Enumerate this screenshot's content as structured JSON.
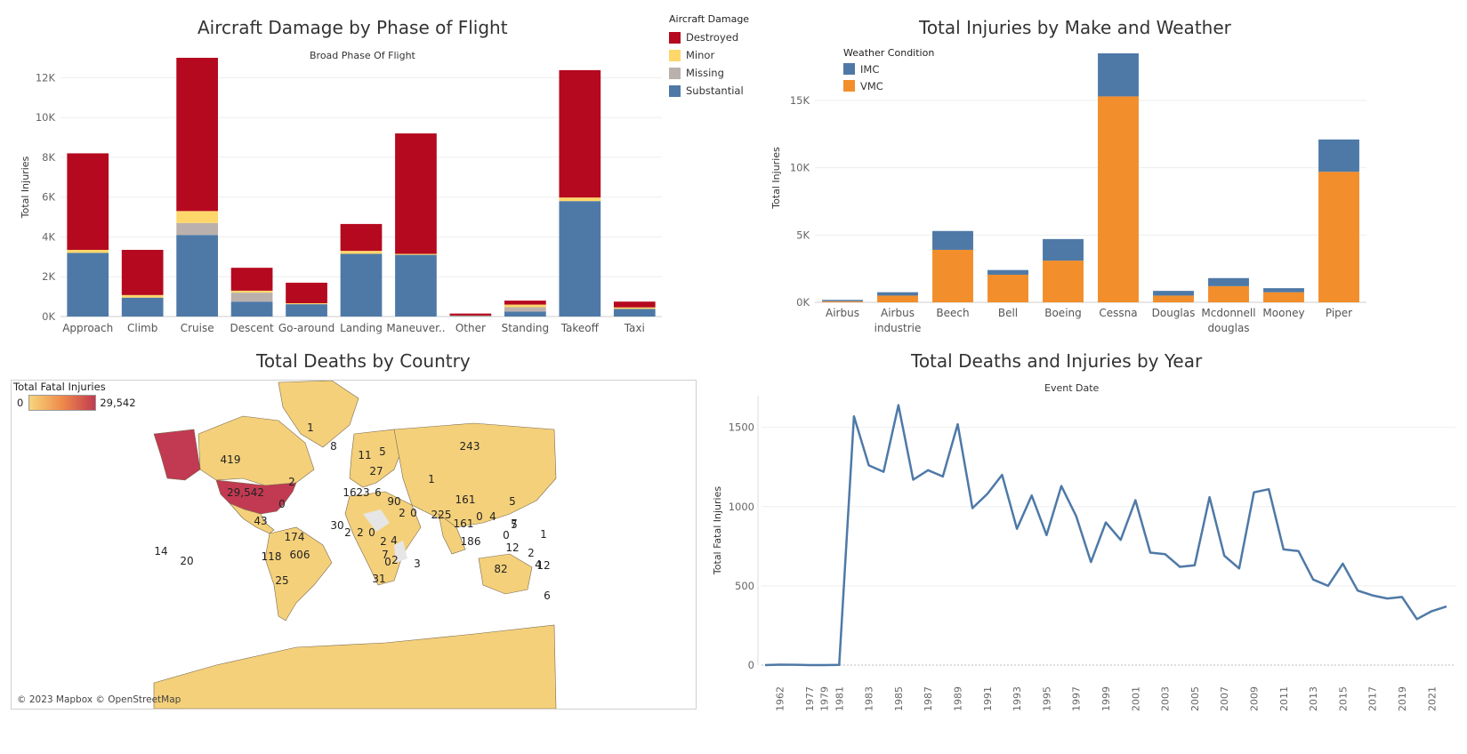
{
  "colors": {
    "destroyed": "#b5091f",
    "minor": "#fdd76a",
    "missing": "#bab0ac",
    "substantial": "#4e79a7",
    "imc": "#4e79a7",
    "vmc": "#f28e2b",
    "line": "#4e79a7",
    "land": "#f4d07a",
    "usa": "#c13a51",
    "nodata": "#e6e6e6"
  },
  "charts": [
    {
      "type": "bar",
      "title": "Aircraft Damage by Phase of Flight",
      "subtitle": "Broad Phase Of Flight",
      "ylabel": "Total Injuries",
      "ylim": [
        0,
        13000
      ],
      "yticks": [
        "0K",
        "2K",
        "4K",
        "6K",
        "8K",
        "10K",
        "12K"
      ],
      "categories": [
        "Approach",
        "Climb",
        "Cruise",
        "Descent",
        "Go-around",
        "Landing",
        "Maneuver..",
        "Other",
        "Standing",
        "Takeoff",
        "Taxi"
      ],
      "legend_title": "Aircraft Damage",
      "legend_position": "top-right",
      "series": [
        {
          "name": "Substantial",
          "values": [
            3200,
            950,
            4100,
            750,
            620,
            3150,
            3100,
            30,
            250,
            5800,
            380
          ]
        },
        {
          "name": "Missing",
          "values": [
            0,
            0,
            600,
            450,
            0,
            0,
            0,
            0,
            220,
            0,
            0
          ]
        },
        {
          "name": "Minor",
          "values": [
            150,
            130,
            600,
            100,
            50,
            150,
            50,
            20,
            130,
            180,
            80
          ]
        },
        {
          "name": "Destroyed",
          "values": [
            4850,
            2270,
            7700,
            1150,
            1030,
            1350,
            6050,
            100,
            200,
            6400,
            290
          ]
        }
      ]
    },
    {
      "type": "bar",
      "title": "Total Injuries by Make and Weather",
      "ylabel": "Total Injuries",
      "ylim": [
        0,
        18500
      ],
      "yticks": [
        "0K",
        "5K",
        "10K",
        "15K"
      ],
      "categories": [
        "Airbus",
        "Airbus industrie",
        "Beech",
        "Bell",
        "Boeing",
        "Cessna",
        "Douglas",
        "Mcdonnell douglas",
        "Mooney",
        "Piper"
      ],
      "legend_title": "Weather Condition",
      "legend_position": "top-left",
      "series": [
        {
          "name": "VMC",
          "values": [
            80,
            500,
            3900,
            2050,
            3100,
            15300,
            500,
            1200,
            750,
            9700
          ]
        },
        {
          "name": "IMC",
          "values": [
            100,
            250,
            1400,
            350,
            1600,
            3200,
            350,
            600,
            300,
            2400
          ]
        }
      ]
    },
    {
      "type": "map",
      "title": "Total Deaths by Country",
      "legend_title": "Total Fatal Injuries",
      "legend_min": "0",
      "legend_max": "29,542",
      "attribution": "© 2023 Mapbox © OpenStreetMap",
      "labels": [
        "1",
        "8",
        "243",
        "419",
        "11",
        "5",
        "27",
        "29,542",
        "1",
        "2",
        "161",
        "23",
        "16",
        "6",
        "90",
        "0",
        "2",
        "0",
        "225",
        "161",
        "0",
        "4",
        "5",
        "7",
        "30",
        "2",
        "2",
        "0",
        "2",
        "4",
        "0",
        "186",
        "5",
        "1",
        "12",
        "2",
        "4",
        "12",
        "43",
        "174",
        "118",
        "606",
        "14",
        "20",
        "3",
        "31",
        "7",
        "0",
        "2",
        "82",
        "25",
        "6"
      ]
    },
    {
      "type": "line",
      "title": "Total Deaths and Injuries by Year",
      "subtitle": "Event Date",
      "ylabel": "Total Fatal Injuries",
      "ylim": [
        0,
        1700
      ],
      "yticks": [
        "0",
        "500",
        "1000",
        "1500"
      ],
      "xtick_labels": [
        "1962",
        "1977",
        "1979",
        "1981",
        "1983",
        "1985",
        "1987",
        "1989",
        "1991",
        "1993",
        "1995",
        "1997",
        "1999",
        "2001",
        "2003",
        "2005",
        "2007",
        "2009",
        "2011",
        "2013",
        "2015",
        "2017",
        "2019",
        "2021"
      ],
      "points": [
        [
          1948,
          0
        ],
        [
          1962,
          3
        ],
        [
          1974,
          2
        ],
        [
          1977,
          0
        ],
        [
          1979,
          0
        ],
        [
          1981,
          1
        ],
        [
          1982,
          1570
        ],
        [
          1983,
          1260
        ],
        [
          1984,
          1220
        ],
        [
          1985,
          1640
        ],
        [
          1986,
          1170
        ],
        [
          1987,
          1230
        ],
        [
          1988,
          1190
        ],
        [
          1989,
          1520
        ],
        [
          1990,
          990
        ],
        [
          1991,
          1080
        ],
        [
          1992,
          1200
        ],
        [
          1993,
          860
        ],
        [
          1994,
          1070
        ],
        [
          1995,
          820
        ],
        [
          1996,
          1130
        ],
        [
          1997,
          940
        ],
        [
          1998,
          650
        ],
        [
          1999,
          900
        ],
        [
          2000,
          790
        ],
        [
          2001,
          1040
        ],
        [
          2002,
          710
        ],
        [
          2003,
          700
        ],
        [
          2004,
          620
        ],
        [
          2005,
          630
        ],
        [
          2006,
          1060
        ],
        [
          2007,
          690
        ],
        [
          2008,
          610
        ],
        [
          2009,
          1090
        ],
        [
          2010,
          1110
        ],
        [
          2011,
          730
        ],
        [
          2012,
          720
        ],
        [
          2013,
          540
        ],
        [
          2014,
          500
        ],
        [
          2015,
          640
        ],
        [
          2016,
          470
        ],
        [
          2017,
          440
        ],
        [
          2018,
          420
        ],
        [
          2019,
          430
        ],
        [
          2020,
          290
        ],
        [
          2021,
          340
        ],
        [
          2022,
          370
        ]
      ]
    }
  ]
}
